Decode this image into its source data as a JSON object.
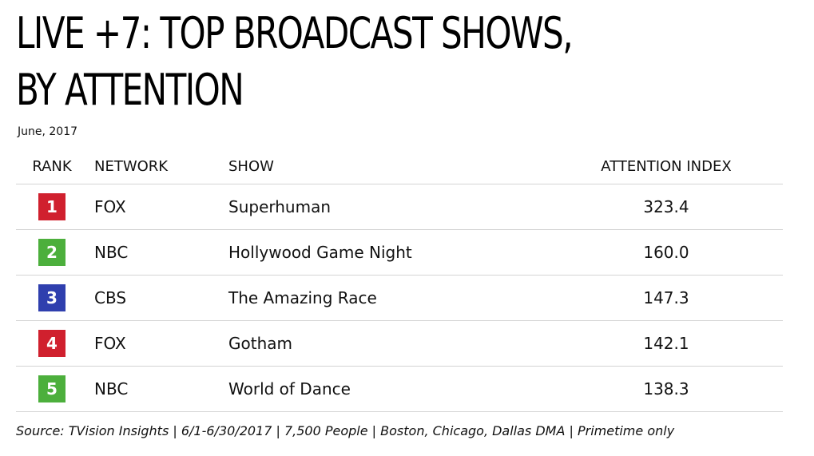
{
  "title": "LIVE +7: TOP BROADCAST SHOWS, BY ATTENTION",
  "subtitle": "June, 2017",
  "table": {
    "headers": {
      "rank": "RANK",
      "network": "NETWORK",
      "show": "SHOW",
      "attention_index": "ATTENTION INDEX"
    },
    "rows": [
      {
        "rank": "1",
        "network": "FOX",
        "show": "Superhuman",
        "attention_index": "323.4",
        "badge_color": "#d0202e"
      },
      {
        "rank": "2",
        "network": "NBC",
        "show": "Hollywood Game Night",
        "attention_index": "160.0",
        "badge_color": "#4caf3c"
      },
      {
        "rank": "3",
        "network": "CBS",
        "show": "The Amazing Race",
        "attention_index": "147.3",
        "badge_color": "#2f3fae"
      },
      {
        "rank": "4",
        "network": "FOX",
        "show": "Gotham",
        "attention_index": "142.1",
        "badge_color": "#d0202e"
      },
      {
        "rank": "5",
        "network": "NBC",
        "show": "World of Dance",
        "attention_index": "138.3",
        "badge_color": "#4caf3c"
      }
    ]
  },
  "source": "Source: TVision Insights | 6/1-6/30/2017 | 7,500 People | Boston, Chicago, Dallas DMA | Primetime only"
}
